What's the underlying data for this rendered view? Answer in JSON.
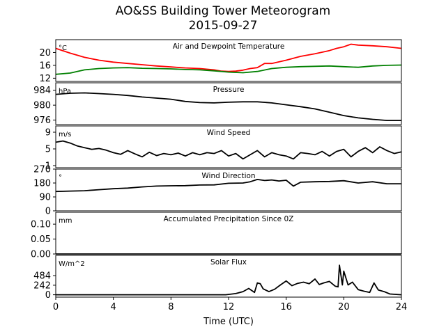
{
  "figure": {
    "title_line1": "AO&SS Building Tower Meteorogram",
    "title_line2": "2015-09-27",
    "xlabel": "Time (UTC)"
  },
  "chart_data": [
    {
      "type": "line",
      "title": "Air and Dewpoint Temperature",
      "unit_label": "°C",
      "xlim": [
        0,
        24
      ],
      "ylim": [
        11,
        24
      ],
      "yticks": [
        12,
        16,
        20
      ],
      "x_ticks": [
        0,
        4,
        8,
        12,
        16,
        20,
        24
      ],
      "series": [
        {
          "color": "#ff0000",
          "x": [
            0,
            1,
            2,
            3,
            4,
            5,
            6,
            7,
            8,
            9,
            10,
            11,
            11.5,
            12,
            12.5,
            13,
            13.5,
            14,
            14.5,
            15,
            16,
            17,
            18,
            19,
            19.5,
            20,
            20.5,
            21,
            22,
            23,
            24
          ],
          "y": [
            21.3,
            19.8,
            18.5,
            17.6,
            17.0,
            16.6,
            16.2,
            15.8,
            15.5,
            15.2,
            15.0,
            14.6,
            14.2,
            14.1,
            14.2,
            14.5,
            15.0,
            15.3,
            16.6,
            16.6,
            17.6,
            18.8,
            19.6,
            20.6,
            21.3,
            21.8,
            22.6,
            22.3,
            22.1,
            21.8,
            21.3
          ]
        },
        {
          "color": "#008000",
          "x": [
            0,
            1,
            2,
            3,
            4,
            5,
            6,
            7,
            8,
            9,
            10,
            11,
            12,
            13,
            14,
            15,
            16,
            17,
            18,
            19,
            20,
            21,
            22,
            23,
            24
          ],
          "y": [
            13.2,
            13.6,
            14.6,
            15.0,
            15.2,
            15.3,
            15.1,
            15.0,
            14.9,
            14.7,
            14.6,
            14.3,
            13.9,
            13.7,
            14.1,
            15.0,
            15.4,
            15.6,
            15.7,
            15.8,
            15.6,
            15.4,
            15.8,
            16.0,
            16.1
          ]
        }
      ]
    },
    {
      "type": "line",
      "title": "Pressure",
      "unit_label": "hPa",
      "xlim": [
        0,
        24
      ],
      "ylim": [
        974.8,
        986.0
      ],
      "yticks": [
        976,
        980,
        984
      ],
      "series": [
        {
          "color": "#000000",
          "x": [
            0,
            1,
            2,
            3,
            4,
            5,
            6,
            7,
            8,
            9,
            10,
            11,
            12,
            13,
            14,
            15,
            16,
            17,
            18,
            19,
            20,
            21,
            22,
            23,
            24
          ],
          "y": [
            982.9,
            983.2,
            983.3,
            983.1,
            982.9,
            982.6,
            982.2,
            981.9,
            981.6,
            981.0,
            980.7,
            980.6,
            980.8,
            980.9,
            980.9,
            980.6,
            980.1,
            979.6,
            979.0,
            978.1,
            977.2,
            976.6,
            976.2,
            975.9,
            975.9
          ]
        }
      ]
    },
    {
      "type": "line",
      "title": "Wind Speed",
      "unit_label": "m/s",
      "xlim": [
        0,
        24
      ],
      "ylim": [
        0.5,
        10.5
      ],
      "yticks": [
        1,
        5,
        9
      ],
      "series": [
        {
          "color": "#000000",
          "x": [
            0,
            0.5,
            1,
            1.5,
            2,
            2.5,
            3,
            3.5,
            4,
            4.5,
            5,
            5.5,
            6,
            6.5,
            7,
            7.5,
            8,
            8.5,
            9,
            9.5,
            10,
            10.5,
            11,
            11.5,
            12,
            12.5,
            13,
            13.5,
            14,
            14.5,
            15,
            15.5,
            16,
            16.5,
            17,
            17.5,
            18,
            18.5,
            19,
            19.5,
            20,
            20.5,
            21,
            21.5,
            22,
            22.5,
            23,
            23.5,
            24
          ],
          "y": [
            6.6,
            6.9,
            6.4,
            5.7,
            5.3,
            4.9,
            5.1,
            4.7,
            4.1,
            3.7,
            4.6,
            3.8,
            3.1,
            4.2,
            3.4,
            3.9,
            3.6,
            4.0,
            3.3,
            4.1,
            3.6,
            4.1,
            3.9,
            4.6,
            3.3,
            3.9,
            2.6,
            3.6,
            4.6,
            3.1,
            4.1,
            3.6,
            3.3,
            2.6,
            4.1,
            3.9,
            3.6,
            4.4,
            3.3,
            4.4,
            4.9,
            3.1,
            4.4,
            5.3,
            4.1,
            5.5,
            4.6,
            3.9,
            4.3
          ]
        }
      ]
    },
    {
      "type": "line",
      "title": "Wind Direction",
      "unit_label": "°",
      "xlim": [
        0,
        24
      ],
      "ylim": [
        0,
        270
      ],
      "yticks": [
        0,
        90,
        180,
        270
      ],
      "series": [
        {
          "color": "#000000",
          "x": [
            0,
            1,
            2,
            3,
            4,
            5,
            6,
            7,
            8,
            9,
            10,
            11,
            12,
            13,
            13.5,
            14,
            14.5,
            15,
            15.5,
            16,
            16.5,
            17,
            18,
            19,
            20,
            21,
            22,
            23,
            24
          ],
          "y": [
            125,
            128,
            130,
            137,
            143,
            147,
            155,
            160,
            162,
            163,
            167,
            168,
            178,
            180,
            188,
            203,
            196,
            200,
            193,
            198,
            160,
            185,
            188,
            190,
            195,
            180,
            188,
            175,
            175
          ]
        }
      ]
    },
    {
      "type": "line",
      "title": "Accumulated Precipitation Since 0Z",
      "unit_label": "mm",
      "xlim": [
        0,
        24
      ],
      "ylim": [
        0,
        0.14
      ],
      "yticks": [
        0.0,
        0.05,
        0.1
      ],
      "ytick_labels": [
        "0.00",
        "0.05",
        "0.10"
      ],
      "series": [
        {
          "color": "#000000",
          "x": [
            0,
            24
          ],
          "y": [
            0,
            0
          ]
        }
      ]
    },
    {
      "type": "line",
      "title": "Solar Flux",
      "unit_label": "W/m^2",
      "xlim": [
        0,
        24
      ],
      "ylim": [
        -60,
        1000
      ],
      "yticks": [
        0,
        242,
        484
      ],
      "series": [
        {
          "color": "#000000",
          "x": [
            0,
            11.8,
            12.5,
            13.0,
            13.4,
            13.8,
            14.0,
            14.2,
            14.4,
            14.8,
            15.2,
            15.6,
            16.0,
            16.4,
            16.8,
            17.2,
            17.6,
            18.0,
            18.3,
            18.6,
            19.0,
            19.4,
            19.6,
            19.7,
            19.9,
            20.0,
            20.3,
            20.6,
            21.0,
            21.4,
            21.8,
            22.1,
            22.4,
            22.8,
            23.2,
            24
          ],
          "y": [
            0,
            0,
            30,
            80,
            160,
            60,
            300,
            280,
            150,
            80,
            140,
            250,
            350,
            230,
            290,
            320,
            280,
            400,
            260,
            300,
            340,
            220,
            200,
            750,
            250,
            600,
            250,
            320,
            130,
            90,
            60,
            300,
            120,
            80,
            20,
            0
          ]
        }
      ]
    }
  ]
}
